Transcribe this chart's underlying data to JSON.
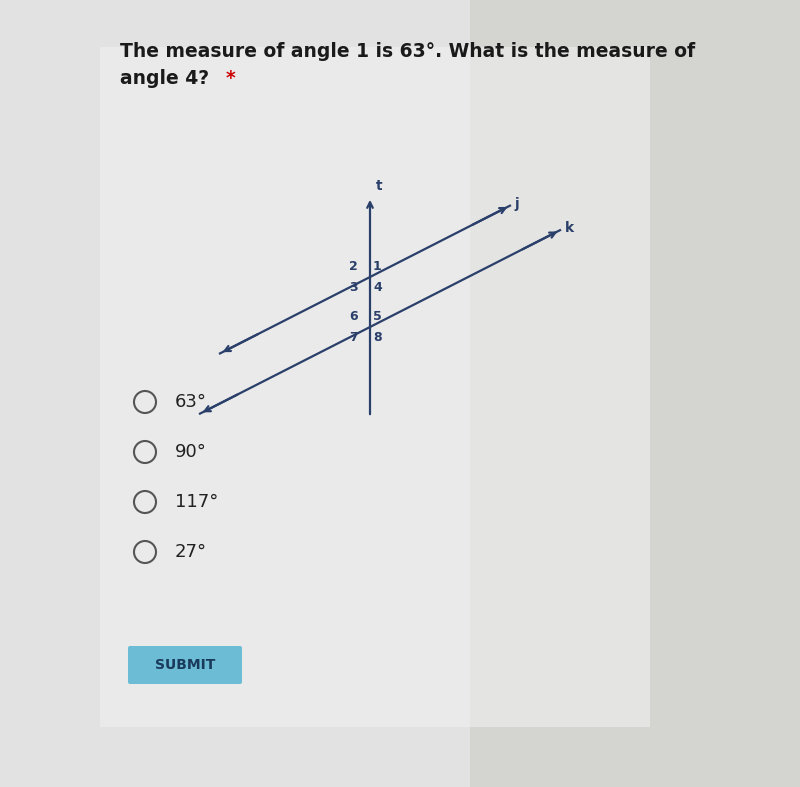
{
  "title_line1": "The measure of angle 1 is 63°. What is the measure of",
  "title_line2": "angle 4? *",
  "title_star_color": "#cc0000",
  "bg_left_color": "#e8e8e8",
  "bg_right_color": "#b0b0b0",
  "content_bg": "#e8e8e8",
  "title_color": "#1a1a1a",
  "line_color": "#2a3f6a",
  "label_color": "#2a3f6a",
  "options": [
    "63°",
    "90°",
    "117°",
    "27°"
  ],
  "submit_text": "SUBMIT",
  "submit_bg": "#6bbcd4",
  "submit_text_color": "#1a3a5c",
  "transversal_label": "t",
  "parallel1_label": "j",
  "parallel2_label": "k"
}
